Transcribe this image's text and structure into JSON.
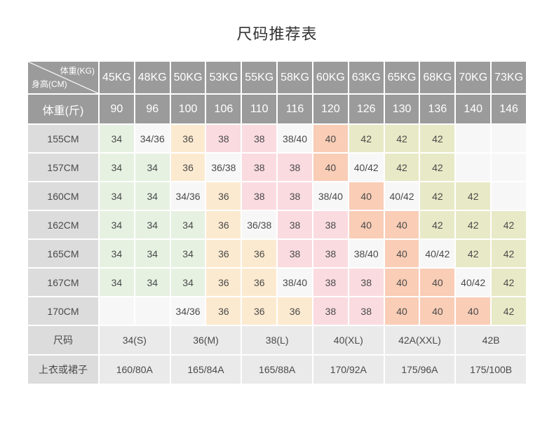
{
  "page": {
    "title": "尺码推荐表"
  },
  "table": {
    "corner": {
      "top_right": "体重(KG)",
      "bottom_left": "身高(CM)"
    },
    "weight_kg_header": [
      "45KG",
      "48KG",
      "50KG",
      "53KG",
      "55KG",
      "58KG",
      "60KG",
      "63KG",
      "65KG",
      "68KG",
      "70KG",
      "73KG"
    ],
    "weight_jin_label": "体重(斤)",
    "weight_jin_values": [
      "90",
      "96",
      "100",
      "106",
      "110",
      "116",
      "120",
      "126",
      "130",
      "136",
      "140",
      "146"
    ],
    "body_rows": [
      {
        "height_label": "155CM",
        "cells": [
          "34",
          "34/36",
          "36",
          "38",
          "38",
          "38/40",
          "40",
          "42",
          "42",
          "42",
          "",
          ""
        ]
      },
      {
        "height_label": "157CM",
        "cells": [
          "34",
          "34",
          "36",
          "36/38",
          "38",
          "38",
          "40",
          "40/42",
          "42",
          "42",
          "",
          ""
        ]
      },
      {
        "height_label": "160CM",
        "cells": [
          "34",
          "34",
          "34/36",
          "36",
          "38",
          "38",
          "38/40",
          "40",
          "40/42",
          "42",
          "42",
          ""
        ]
      },
      {
        "height_label": "162CM",
        "cells": [
          "34",
          "34",
          "34",
          "36",
          "36/38",
          "38",
          "38",
          "40",
          "40",
          "42",
          "42",
          "42"
        ]
      },
      {
        "height_label": "165CM",
        "cells": [
          "34",
          "34",
          "34",
          "36",
          "36",
          "38",
          "38",
          "38/40",
          "40",
          "40/42",
          "42",
          "42"
        ]
      },
      {
        "height_label": "167CM",
        "cells": [
          "34",
          "34",
          "34",
          "36",
          "36",
          "38/40",
          "38",
          "38",
          "40",
          "40",
          "40/42",
          "42"
        ]
      },
      {
        "height_label": "170CM",
        "cells": [
          "",
          "",
          "34/36",
          "36",
          "36",
          "36",
          "38",
          "38",
          "40",
          "40",
          "40",
          "42"
        ]
      }
    ],
    "size_row": {
      "label": "尺码",
      "values": [
        "34(S)",
        "36(M)",
        "38(L)",
        "40(XL)",
        "42A(XXL)",
        "42B"
      ]
    },
    "garment_row": {
      "label": "上衣或裙子",
      "values": [
        "160/80A",
        "165/84A",
        "165/88A",
        "170/92A",
        "175/96A",
        "175/100B"
      ]
    },
    "colors": {
      "header_bg": "#9b9b9b",
      "header_text": "#ffffff",
      "label_bg": "#dcdcdc",
      "cell_34": "#e6f1e2",
      "cell_36": "#fcead0",
      "cell_38": "#fadbe0",
      "cell_40": "#f9cdb6",
      "cell_42": "#e8e9c6",
      "cell_mixed": "#f7f7f7",
      "bottom_cell_bg": "#eaeaea",
      "body_text": "#4a4a4a"
    }
  }
}
